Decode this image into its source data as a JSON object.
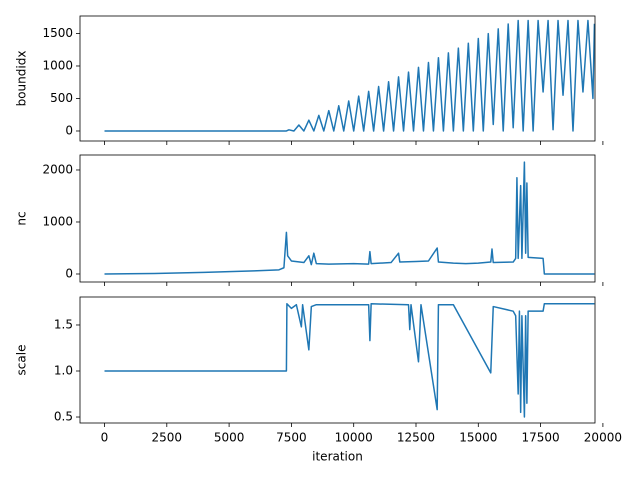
{
  "chart_data": [
    {
      "type": "line",
      "ylabel": "boundidx",
      "color": "#1f77b4",
      "x": [
        0,
        7300,
        7400,
        7600,
        7800,
        8000,
        8200,
        8400,
        8600,
        8800,
        9000,
        9200,
        9400,
        9600,
        9800,
        10000,
        10200,
        10400,
        10600,
        10800,
        11000,
        11200,
        11400,
        11600,
        11800,
        12000,
        12200,
        12400,
        12600,
        12800,
        13000,
        13200,
        13400,
        13600,
        13800,
        14000,
        14200,
        14400,
        14600,
        14800,
        15000,
        15200,
        15400,
        15600,
        15800,
        16000,
        16200,
        16400,
        16600,
        16800,
        17000,
        17200,
        17400,
        17600,
        17800,
        18000,
        18200,
        18400,
        18600,
        18800,
        19000,
        19200,
        19400,
        19600,
        19660
      ],
      "values": [
        0,
        0,
        18,
        0,
        92,
        0,
        166,
        0,
        240,
        0,
        314,
        0,
        388,
        0,
        462,
        0,
        536,
        0,
        610,
        0,
        684,
        0,
        758,
        0,
        832,
        0,
        906,
        0,
        979,
        0,
        1053,
        0,
        1127,
        0,
        1201,
        0,
        1275,
        0,
        1349,
        0,
        1423,
        0,
        1497,
        100,
        1571,
        0,
        1645,
        50,
        1700,
        0,
        1700,
        0,
        1700,
        600,
        1700,
        20,
        1700,
        550,
        1700,
        0,
        1700,
        600,
        1700,
        500,
        1650
      ],
      "ylim": [
        -154,
        1769
      ],
      "yticks": [
        0,
        500,
        1000,
        1500
      ]
    },
    {
      "type": "line",
      "ylabel": "nc",
      "color": "#1f77b4",
      "x": [
        0,
        2000,
        4000,
        6000,
        7000,
        7200,
        7300,
        7350,
        7500,
        8000,
        8200,
        8300,
        8400,
        8500,
        9000,
        10000,
        10600,
        10650,
        10700,
        11500,
        11800,
        11850,
        12500,
        13000,
        13350,
        13400,
        14000,
        14500,
        15000,
        15500,
        15550,
        15600,
        16400,
        16500,
        16550,
        16600,
        16700,
        16750,
        16850,
        16900,
        16950,
        17000,
        17600,
        17650,
        19660
      ],
      "values": [
        0,
        10,
        30,
        60,
        80,
        120,
        800,
        350,
        250,
        220,
        350,
        180,
        400,
        200,
        190,
        200,
        190,
        430,
        200,
        220,
        400,
        230,
        240,
        250,
        500,
        230,
        210,
        200,
        210,
        230,
        480,
        220,
        230,
        300,
        1850,
        300,
        1700,
        300,
        2150,
        400,
        1750,
        320,
        300,
        0,
        0
      ],
      "ylim": [
        -154,
        2288
      ],
      "yticks": [
        0,
        1000,
        2000
      ]
    },
    {
      "type": "line",
      "ylabel": "scale",
      "xlabel": "iteration",
      "color": "#1f77b4",
      "x": [
        0,
        7300,
        7320,
        7500,
        7700,
        7900,
        7950,
        8200,
        8300,
        8500,
        10600,
        10650,
        10700,
        12200,
        12250,
        12300,
        12600,
        12700,
        13350,
        13400,
        14000,
        15500,
        15600,
        16400,
        16500,
        16600,
        16650,
        16700,
        16750,
        16850,
        16900,
        16950,
        17000,
        17600,
        17650,
        19660
      ],
      "values": [
        1,
        1,
        1.73,
        1.68,
        1.72,
        1.48,
        1.72,
        1.23,
        1.7,
        1.72,
        1.72,
        1.33,
        1.73,
        1.72,
        1.45,
        1.72,
        1.1,
        1.72,
        0.58,
        1.72,
        1.72,
        0.98,
        1.7,
        1.65,
        1.6,
        0.75,
        1.65,
        0.55,
        1.6,
        0.5,
        1.6,
        0.65,
        1.65,
        1.65,
        1.73,
        1.73
      ],
      "ylim": [
        0.435,
        1.804
      ],
      "yticks": [
        0.5,
        {
          "value": 1,
          "label": "1.0"
        },
        1.5
      ],
      "xlim": [
        -983,
        19683
      ],
      "xticks": [
        0,
        2500,
        5000,
        7500,
        10000,
        12500,
        15000,
        17500,
        20000
      ]
    }
  ]
}
